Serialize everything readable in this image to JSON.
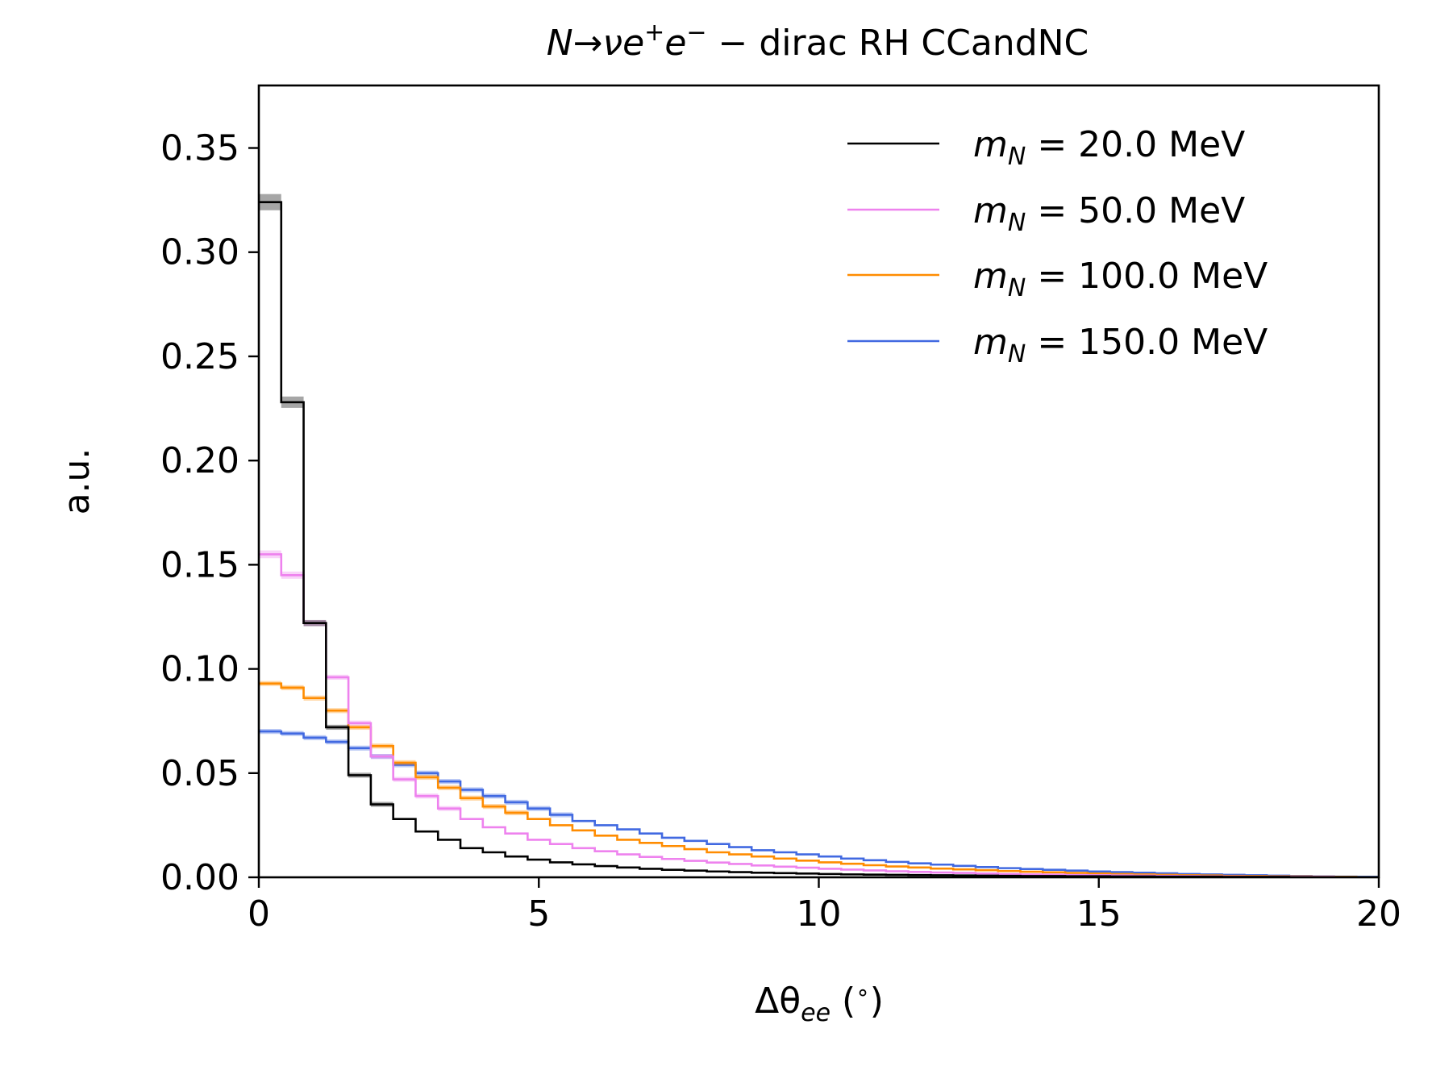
{
  "chart_data": {
    "type": "line",
    "step": true,
    "title_parts": [
      "N→νe",
      "+",
      "e",
      "−",
      " − dirac RH CCandNC"
    ],
    "xlabel_parts": [
      "Δθ",
      "ee",
      " (",
      "∘",
      ")"
    ],
    "ylabel": "a.u.",
    "xlim": [
      0,
      20
    ],
    "ylim": [
      0,
      0.38
    ],
    "xticks": [
      0,
      5,
      10,
      15,
      20
    ],
    "xtick_labels": [
      "0",
      "5",
      "10",
      "15",
      "20"
    ],
    "yticks": [
      0,
      0.05,
      0.1,
      0.15,
      0.2,
      0.25,
      0.3,
      0.35
    ],
    "ytick_labels": [
      "0.00",
      "0.05",
      "0.10",
      "0.15",
      "0.20",
      "0.25",
      "0.30",
      "0.35"
    ],
    "grid": false,
    "legend_position": "top-right",
    "bin_edges": [
      0,
      0.4,
      0.8,
      1.2,
      1.6,
      2.0,
      2.4,
      2.8,
      3.2,
      3.6,
      4.0,
      4.4,
      4.8,
      5.2,
      5.6,
      6.0,
      6.4,
      6.8,
      7.2,
      7.6,
      8.0,
      8.4,
      8.8,
      9.2,
      9.6,
      10.0,
      10.4,
      10.8,
      11.2,
      11.6,
      12.0,
      12.4,
      12.8,
      13.2,
      13.6,
      14.0,
      14.4,
      14.8,
      15.2,
      15.6,
      16.0,
      16.4,
      16.8,
      17.2,
      17.6,
      18.0,
      18.4,
      18.8,
      19.2,
      19.6,
      20.0
    ],
    "series": [
      {
        "name_parts": [
          "m",
          "N",
          " = 20.0 MeV"
        ],
        "color": "#000000",
        "values": [
          0.324,
          0.228,
          0.122,
          0.072,
          0.049,
          0.035,
          0.028,
          0.022,
          0.018,
          0.014,
          0.012,
          0.01,
          0.0085,
          0.0072,
          0.0062,
          0.0054,
          0.0047,
          0.0041,
          0.0036,
          0.0032,
          0.0028,
          0.0025,
          0.0022,
          0.002,
          0.0018,
          0.0016,
          0.0014,
          0.0013,
          0.0012,
          0.0011,
          0.001,
          0.0009,
          0.0008,
          0.0007,
          0.0006,
          0.0006,
          0.0005,
          0.0005,
          0.0004,
          0.0004,
          0.0003,
          0.0003,
          0.0003,
          0.0002,
          0.0002,
          0.0002,
          0.0001,
          0.0001,
          0.0001,
          0.0001
        ]
      },
      {
        "name_parts": [
          "m",
          "N",
          " = 50.0 MeV"
        ],
        "color": "#ee82ee",
        "values": [
          0.155,
          0.145,
          0.122,
          0.096,
          0.074,
          0.058,
          0.047,
          0.039,
          0.033,
          0.028,
          0.024,
          0.021,
          0.018,
          0.016,
          0.014,
          0.0125,
          0.011,
          0.0098,
          0.0088,
          0.0079,
          0.0071,
          0.0064,
          0.0057,
          0.0051,
          0.0046,
          0.0041,
          0.0037,
          0.0033,
          0.0029,
          0.0026,
          0.0023,
          0.0021,
          0.0018,
          0.0016,
          0.0014,
          0.0013,
          0.0011,
          0.001,
          0.0009,
          0.0008,
          0.0007,
          0.0006,
          0.0005,
          0.0004,
          0.0003,
          0.0003,
          0.0002,
          0.0002,
          0.0001,
          0.0001
        ]
      },
      {
        "name_parts": [
          "m",
          "N",
          " = 100.0 MeV"
        ],
        "color": "#ff8c00",
        "values": [
          0.093,
          0.091,
          0.086,
          0.08,
          0.072,
          0.063,
          0.055,
          0.048,
          0.043,
          0.038,
          0.034,
          0.031,
          0.028,
          0.025,
          0.0225,
          0.02,
          0.018,
          0.0165,
          0.015,
          0.0135,
          0.012,
          0.011,
          0.01,
          0.009,
          0.008,
          0.0072,
          0.0065,
          0.0058,
          0.0052,
          0.0047,
          0.0042,
          0.0038,
          0.0034,
          0.003,
          0.0027,
          0.0024,
          0.0021,
          0.0018,
          0.0016,
          0.0014,
          0.0012,
          0.001,
          0.0009,
          0.0007,
          0.0006,
          0.0005,
          0.0004,
          0.0003,
          0.0002,
          0.0001
        ]
      },
      {
        "name_parts": [
          "m",
          "N",
          " = 150.0 MeV"
        ],
        "color": "#4169e1",
        "values": [
          0.07,
          0.069,
          0.067,
          0.065,
          0.062,
          0.058,
          0.054,
          0.05,
          0.046,
          0.042,
          0.039,
          0.036,
          0.033,
          0.03,
          0.027,
          0.025,
          0.023,
          0.021,
          0.019,
          0.0175,
          0.016,
          0.0145,
          0.013,
          0.012,
          0.011,
          0.01,
          0.009,
          0.0082,
          0.0074,
          0.0067,
          0.0061,
          0.0055,
          0.0049,
          0.0044,
          0.004,
          0.0036,
          0.0032,
          0.0028,
          0.0025,
          0.0022,
          0.0019,
          0.0016,
          0.0014,
          0.0012,
          0.001,
          0.0008,
          0.0006,
          0.0004,
          0.0003,
          0.0002
        ]
      }
    ]
  }
}
